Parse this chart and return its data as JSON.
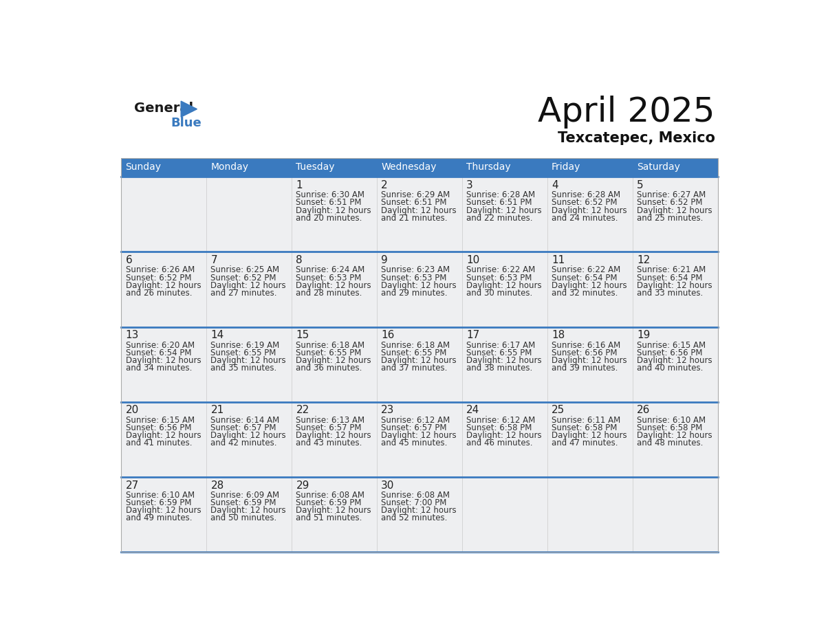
{
  "title": "April 2025",
  "subtitle": "Texcatepec, Mexico",
  "days_of_week": [
    "Sunday",
    "Monday",
    "Tuesday",
    "Wednesday",
    "Thursday",
    "Friday",
    "Saturday"
  ],
  "header_bg": "#3a7abf",
  "header_text": "#ffffff",
  "cell_bg": "#eeeff1",
  "divider_color": "#3a7abf",
  "text_color": "#333333",
  "day_num_color": "#222222",
  "calendar_data": [
    [
      {
        "day": "",
        "sunrise": "",
        "sunset": "",
        "daylight": ""
      },
      {
        "day": "",
        "sunrise": "",
        "sunset": "",
        "daylight": ""
      },
      {
        "day": "1",
        "sunrise": "6:30 AM",
        "sunset": "6:51 PM",
        "daylight": "12 hours and 20 minutes."
      },
      {
        "day": "2",
        "sunrise": "6:29 AM",
        "sunset": "6:51 PM",
        "daylight": "12 hours and 21 minutes."
      },
      {
        "day": "3",
        "sunrise": "6:28 AM",
        "sunset": "6:51 PM",
        "daylight": "12 hours and 22 minutes."
      },
      {
        "day": "4",
        "sunrise": "6:28 AM",
        "sunset": "6:52 PM",
        "daylight": "12 hours and 24 minutes."
      },
      {
        "day": "5",
        "sunrise": "6:27 AM",
        "sunset": "6:52 PM",
        "daylight": "12 hours and 25 minutes."
      }
    ],
    [
      {
        "day": "6",
        "sunrise": "6:26 AM",
        "sunset": "6:52 PM",
        "daylight": "12 hours and 26 minutes."
      },
      {
        "day": "7",
        "sunrise": "6:25 AM",
        "sunset": "6:52 PM",
        "daylight": "12 hours and 27 minutes."
      },
      {
        "day": "8",
        "sunrise": "6:24 AM",
        "sunset": "6:53 PM",
        "daylight": "12 hours and 28 minutes."
      },
      {
        "day": "9",
        "sunrise": "6:23 AM",
        "sunset": "6:53 PM",
        "daylight": "12 hours and 29 minutes."
      },
      {
        "day": "10",
        "sunrise": "6:22 AM",
        "sunset": "6:53 PM",
        "daylight": "12 hours and 30 minutes."
      },
      {
        "day": "11",
        "sunrise": "6:22 AM",
        "sunset": "6:54 PM",
        "daylight": "12 hours and 32 minutes."
      },
      {
        "day": "12",
        "sunrise": "6:21 AM",
        "sunset": "6:54 PM",
        "daylight": "12 hours and 33 minutes."
      }
    ],
    [
      {
        "day": "13",
        "sunrise": "6:20 AM",
        "sunset": "6:54 PM",
        "daylight": "12 hours and 34 minutes."
      },
      {
        "day": "14",
        "sunrise": "6:19 AM",
        "sunset": "6:55 PM",
        "daylight": "12 hours and 35 minutes."
      },
      {
        "day": "15",
        "sunrise": "6:18 AM",
        "sunset": "6:55 PM",
        "daylight": "12 hours and 36 minutes."
      },
      {
        "day": "16",
        "sunrise": "6:18 AM",
        "sunset": "6:55 PM",
        "daylight": "12 hours and 37 minutes."
      },
      {
        "day": "17",
        "sunrise": "6:17 AM",
        "sunset": "6:55 PM",
        "daylight": "12 hours and 38 minutes."
      },
      {
        "day": "18",
        "sunrise": "6:16 AM",
        "sunset": "6:56 PM",
        "daylight": "12 hours and 39 minutes."
      },
      {
        "day": "19",
        "sunrise": "6:15 AM",
        "sunset": "6:56 PM",
        "daylight": "12 hours and 40 minutes."
      }
    ],
    [
      {
        "day": "20",
        "sunrise": "6:15 AM",
        "sunset": "6:56 PM",
        "daylight": "12 hours and 41 minutes."
      },
      {
        "day": "21",
        "sunrise": "6:14 AM",
        "sunset": "6:57 PM",
        "daylight": "12 hours and 42 minutes."
      },
      {
        "day": "22",
        "sunrise": "6:13 AM",
        "sunset": "6:57 PM",
        "daylight": "12 hours and 43 minutes."
      },
      {
        "day": "23",
        "sunrise": "6:12 AM",
        "sunset": "6:57 PM",
        "daylight": "12 hours and 45 minutes."
      },
      {
        "day": "24",
        "sunrise": "6:12 AM",
        "sunset": "6:58 PM",
        "daylight": "12 hours and 46 minutes."
      },
      {
        "day": "25",
        "sunrise": "6:11 AM",
        "sunset": "6:58 PM",
        "daylight": "12 hours and 47 minutes."
      },
      {
        "day": "26",
        "sunrise": "6:10 AM",
        "sunset": "6:58 PM",
        "daylight": "12 hours and 48 minutes."
      }
    ],
    [
      {
        "day": "27",
        "sunrise": "6:10 AM",
        "sunset": "6:59 PM",
        "daylight": "12 hours and 49 minutes."
      },
      {
        "day": "28",
        "sunrise": "6:09 AM",
        "sunset": "6:59 PM",
        "daylight": "12 hours and 50 minutes."
      },
      {
        "day": "29",
        "sunrise": "6:08 AM",
        "sunset": "6:59 PM",
        "daylight": "12 hours and 51 minutes."
      },
      {
        "day": "30",
        "sunrise": "6:08 AM",
        "sunset": "7:00 PM",
        "daylight": "12 hours and 52 minutes."
      },
      {
        "day": "",
        "sunrise": "",
        "sunset": "",
        "daylight": ""
      },
      {
        "day": "",
        "sunrise": "",
        "sunset": "",
        "daylight": ""
      },
      {
        "day": "",
        "sunrise": "",
        "sunset": "",
        "daylight": ""
      }
    ]
  ],
  "logo_general_color": "#1a1a1a",
  "logo_blue_color": "#3a7abf",
  "logo_triangle_color": "#3a7abf"
}
